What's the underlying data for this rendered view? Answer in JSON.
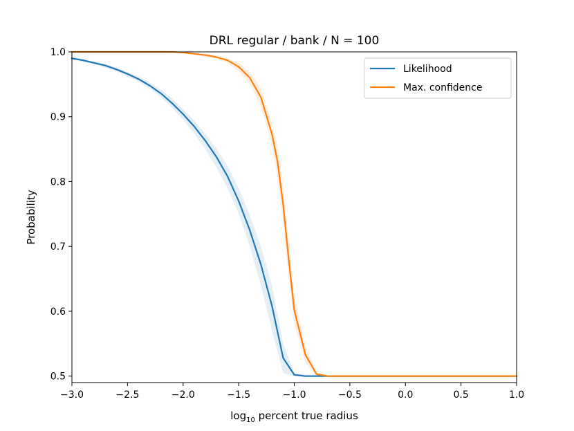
{
  "chart_data": {
    "type": "line",
    "title": "DRL regular / bank / N = 100",
    "xlabel": {
      "prefix": "log",
      "subscript": "10",
      "suffix": " percent true radius"
    },
    "ylabel": "Probability",
    "xlim": [
      -3.0,
      1.0
    ],
    "ylim": [
      0.49,
      1.0
    ],
    "xticks": [
      -3.0,
      -2.5,
      -2.0,
      -1.5,
      -1.0,
      -0.5,
      0.0,
      0.5,
      1.0
    ],
    "xtick_labels": [
      "−3.0",
      "−2.5",
      "−2.0",
      "−1.5",
      "−1.0",
      "−0.5",
      "0.0",
      "0.5",
      "1.0"
    ],
    "yticks": [
      0.5,
      0.6,
      0.7,
      0.8,
      0.9,
      1.0
    ],
    "ytick_labels": [
      "0.5",
      "0.6",
      "0.7",
      "0.8",
      "0.9",
      "1.0"
    ],
    "grid": false,
    "legend_position": "top-right",
    "series": [
      {
        "name": "Likelihood",
        "color": "#1f77b4",
        "x": [
          -3.0,
          -2.9,
          -2.8,
          -2.7,
          -2.6,
          -2.5,
          -2.4,
          -2.3,
          -2.2,
          -2.1,
          -2.0,
          -1.9,
          -1.8,
          -1.7,
          -1.6,
          -1.5,
          -1.4,
          -1.3,
          -1.2,
          -1.1,
          -1.0,
          -0.9,
          -0.8,
          -0.7,
          -0.6,
          -0.5,
          -0.4,
          -0.3,
          -0.2,
          -0.1,
          0.0,
          0.1,
          0.2,
          0.3,
          0.4,
          0.5,
          0.6,
          0.7,
          0.8,
          0.9,
          1.0
        ],
        "y": [
          0.99,
          0.987,
          0.983,
          0.979,
          0.973,
          0.966,
          0.958,
          0.948,
          0.936,
          0.921,
          0.904,
          0.885,
          0.863,
          0.838,
          0.808,
          0.77,
          0.725,
          0.672,
          0.608,
          0.528,
          0.502,
          0.5,
          0.5,
          0.5,
          0.5,
          0.5,
          0.5,
          0.5,
          0.5,
          0.5,
          0.5,
          0.5,
          0.5,
          0.5,
          0.5,
          0.5,
          0.5,
          0.5,
          0.5,
          0.5,
          0.5
        ],
        "band_lower": [
          0.988,
          0.985,
          0.981,
          0.976,
          0.97,
          0.962,
          0.954,
          0.943,
          0.93,
          0.914,
          0.895,
          0.874,
          0.85,
          0.822,
          0.79,
          0.75,
          0.7,
          0.64,
          0.57,
          0.505,
          0.5,
          0.499,
          0.499,
          0.499,
          0.499,
          0.499,
          0.499,
          0.499,
          0.499,
          0.499,
          0.499,
          0.499,
          0.499,
          0.499,
          0.499,
          0.499,
          0.499,
          0.499,
          0.499,
          0.499,
          0.499
        ],
        "band_upper": [
          0.992,
          0.989,
          0.985,
          0.981,
          0.976,
          0.969,
          0.962,
          0.953,
          0.942,
          0.928,
          0.912,
          0.894,
          0.874,
          0.851,
          0.824,
          0.79,
          0.748,
          0.7,
          0.64,
          0.55,
          0.505,
          0.501,
          0.501,
          0.501,
          0.501,
          0.501,
          0.501,
          0.501,
          0.501,
          0.501,
          0.501,
          0.501,
          0.501,
          0.501,
          0.501,
          0.501,
          0.501,
          0.501,
          0.501,
          0.501,
          0.501
        ]
      },
      {
        "name": "Max. confidence",
        "color": "#ff7f0e",
        "x": [
          -3.0,
          -2.9,
          -2.8,
          -2.7,
          -2.6,
          -2.5,
          -2.4,
          -2.3,
          -2.2,
          -2.1,
          -2.0,
          -1.9,
          -1.8,
          -1.7,
          -1.6,
          -1.5,
          -1.4,
          -1.3,
          -1.2,
          -1.15,
          -1.1,
          -1.05,
          -1.0,
          -0.9,
          -0.8,
          -0.7,
          -0.6,
          -0.5,
          -0.4,
          -0.3,
          -0.2,
          -0.1,
          0.0,
          0.1,
          0.2,
          0.3,
          0.4,
          0.5,
          0.6,
          0.7,
          0.8,
          0.9,
          1.0
        ],
        "y": [
          1.0,
          1.0,
          1.0,
          1.0,
          1.0,
          1.0,
          1.0,
          1.0,
          1.0,
          1.0,
          0.999,
          0.997,
          0.995,
          0.992,
          0.987,
          0.977,
          0.96,
          0.93,
          0.873,
          0.83,
          0.765,
          0.68,
          0.602,
          0.533,
          0.503,
          0.5,
          0.5,
          0.5,
          0.5,
          0.5,
          0.5,
          0.5,
          0.5,
          0.5,
          0.5,
          0.5,
          0.5,
          0.5,
          0.5,
          0.5,
          0.5,
          0.5,
          0.5
        ],
        "band_lower": [
          1.0,
          1.0,
          1.0,
          1.0,
          1.0,
          1.0,
          1.0,
          1.0,
          1.0,
          1.0,
          0.998,
          0.996,
          0.993,
          0.989,
          0.983,
          0.97,
          0.95,
          0.915,
          0.855,
          0.805,
          0.735,
          0.65,
          0.58,
          0.52,
          0.501,
          0.499,
          0.499,
          0.499,
          0.499,
          0.499,
          0.499,
          0.499,
          0.499,
          0.499,
          0.499,
          0.499,
          0.499,
          0.499,
          0.499,
          0.499,
          0.499,
          0.499,
          0.499
        ],
        "band_upper": [
          1.0,
          1.0,
          1.0,
          1.0,
          1.0,
          1.0,
          1.0,
          1.0,
          1.0,
          1.0,
          1.0,
          0.998,
          0.997,
          0.995,
          0.991,
          0.983,
          0.97,
          0.945,
          0.89,
          0.855,
          0.795,
          0.71,
          0.625,
          0.548,
          0.506,
          0.501,
          0.501,
          0.501,
          0.501,
          0.501,
          0.501,
          0.501,
          0.501,
          0.501,
          0.501,
          0.501,
          0.501,
          0.501,
          0.501,
          0.501,
          0.501,
          0.501,
          0.501
        ]
      }
    ]
  }
}
